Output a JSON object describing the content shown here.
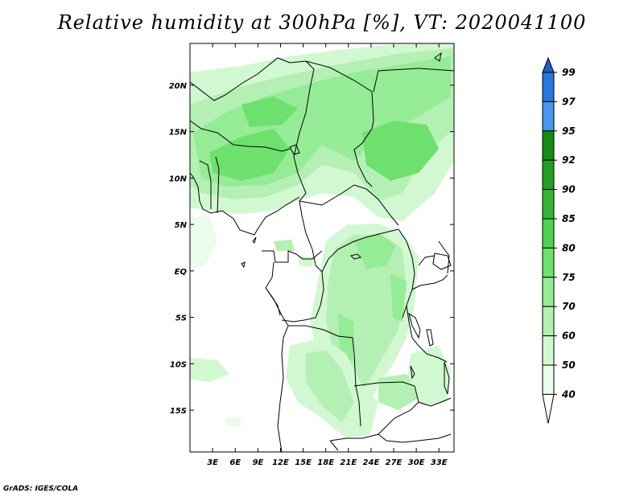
{
  "title": "Relative humidity at 300hPa [%], VT: 2020041100",
  "credit": "GrADS: IGES/COLA",
  "map": {
    "lon_range": [
      0,
      35
    ],
    "lat_range": [
      -19.5,
      24.5
    ],
    "lat_ticks": [
      {
        "value": 20,
        "label": "20N"
      },
      {
        "value": 15,
        "label": "15N"
      },
      {
        "value": 10,
        "label": "10N"
      },
      {
        "value": 5,
        "label": "5N"
      },
      {
        "value": 0,
        "label": "EQ"
      },
      {
        "value": -5,
        "label": "5S"
      },
      {
        "value": -10,
        "label": "10S"
      },
      {
        "value": -15,
        "label": "15S"
      }
    ],
    "lon_ticks": [
      {
        "value": 3,
        "label": "3E"
      },
      {
        "value": 6,
        "label": "6E"
      },
      {
        "value": 9,
        "label": "9E"
      },
      {
        "value": 12,
        "label": "12E"
      },
      {
        "value": 15,
        "label": "15E"
      },
      {
        "value": 18,
        "label": "18E"
      },
      {
        "value": 21,
        "label": "21E"
      },
      {
        "value": 24,
        "label": "24E"
      },
      {
        "value": 27,
        "label": "27E"
      },
      {
        "value": 30,
        "label": "30E"
      },
      {
        "value": 33,
        "label": "33E"
      }
    ]
  },
  "colorbar": {
    "levels": [
      {
        "label": "99",
        "color": "#1e5fc8"
      },
      {
        "label": "97",
        "color": "#2878dc"
      },
      {
        "label": "95",
        "color": "#4696ec"
      },
      {
        "label": "92",
        "color": "#148c14"
      },
      {
        "label": "90",
        "color": "#23a023"
      },
      {
        "label": "85",
        "color": "#37b437"
      },
      {
        "label": "80",
        "color": "#50d050"
      },
      {
        "label": "75",
        "color": "#6ee06e"
      },
      {
        "label": "70",
        "color": "#96eb96"
      },
      {
        "label": "60",
        "color": "#b4f0b4"
      },
      {
        "label": "50",
        "color": "#d2f8d2"
      },
      {
        "label": "40",
        "color": "#ebfceb"
      }
    ]
  }
}
